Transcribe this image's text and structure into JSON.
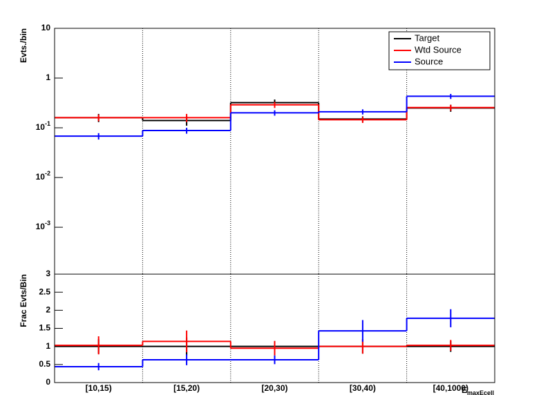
{
  "chart_data": [
    {
      "type": "step",
      "y_label": "Evts./bin",
      "log_scale": true,
      "grid_x": true,
      "legend": "top-right",
      "ylim": [
        0.000114,
        10
      ],
      "yticks": [
        {
          "value": 0.001,
          "label": "10",
          "exp": "-3"
        },
        {
          "value": 0.01,
          "label": "10",
          "exp": "-2"
        },
        {
          "value": 0.1,
          "label": "10",
          "exp": "-1"
        },
        1,
        10
      ],
      "series": [
        {
          "name": "Target",
          "color": "#000000",
          "values": [
            0.16,
            0.14,
            0.32,
            0.15,
            0.25
          ],
          "errors": [
            0.03,
            0.03,
            0.05,
            0.02,
            0.04
          ]
        },
        {
          "name": "Wtd Source",
          "color": "#ff0000",
          "values": [
            0.16,
            0.16,
            0.29,
            0.145,
            0.255
          ],
          "errors": [
            0.025,
            0.03,
            0.04,
            0.02,
            0.035
          ]
        },
        {
          "name": "Source",
          "color": "#0000ff",
          "values": [
            0.068,
            0.088,
            0.2,
            0.21,
            0.43
          ],
          "errors": [
            0.01,
            0.012,
            0.025,
            0.025,
            0.05
          ]
        }
      ]
    },
    {
      "type": "step",
      "y_label": "Frac Evts/Bin",
      "x_label": "E",
      "x_label_sub": "maxEcell",
      "grid_x": true,
      "categories": [
        "[10,15)",
        "[15,20)",
        "[20,30)",
        "[30,40)",
        "[40,1000)"
      ],
      "ylim": [
        0,
        3
      ],
      "yticks": [
        0,
        0.5,
        1,
        1.5,
        2,
        2.5,
        3
      ],
      "series": [
        {
          "color": "#000000",
          "values": [
            1,
            1,
            1,
            1,
            1
          ],
          "errors": [
            0.2,
            0.25,
            0.15,
            0.2,
            0.15
          ]
        },
        {
          "color": "#ff0000",
          "values": [
            1.03,
            1.14,
            0.95,
            1.0,
            1.03
          ],
          "errors": [
            0.25,
            0.3,
            0.2,
            0.2,
            0.15
          ]
        },
        {
          "color": "#0000ff",
          "values": [
            0.44,
            0.63,
            0.63,
            1.43,
            1.78
          ],
          "errors": [
            0.1,
            0.15,
            0.12,
            0.3,
            0.25
          ]
        }
      ]
    }
  ]
}
